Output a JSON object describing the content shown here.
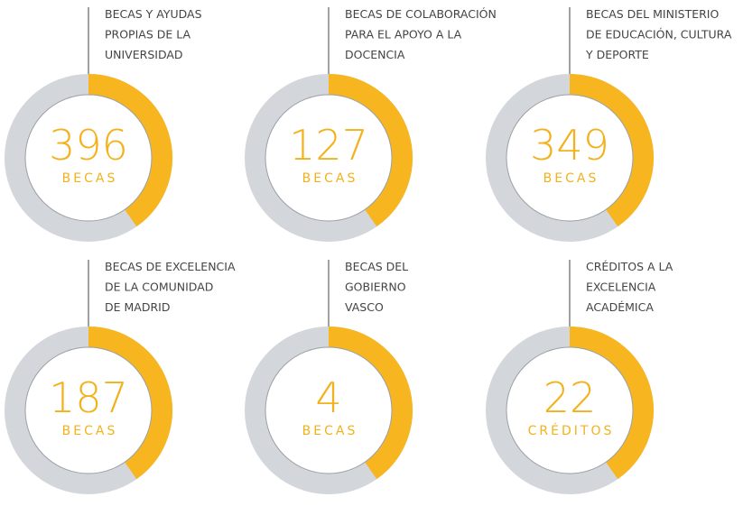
{
  "items": [
    {
      "label": [
        "BECAS Y AYUDAS",
        "PROPIAS DE LA",
        "UNIVERSIDAD"
      ],
      "number": "396",
      "unit": "BECAS"
    },
    {
      "label": [
        "BECAS DE COLABORACIÓN",
        "PARA EL APOYO A LA",
        "DOCENCIA"
      ],
      "number": "127",
      "unit": "BECAS"
    },
    {
      "label": [
        "BECAS DEL MINISTERIO",
        "DE EDUCACIÓN, CULTURA",
        "Y DEPORTE"
      ],
      "number": "349",
      "unit": "BECAS"
    },
    {
      "label": [
        "BECAS DE EXCELENCIA",
        "DE LA COMUNIDAD",
        "DE MADRID"
      ],
      "number": "187",
      "unit": "BECAS"
    },
    {
      "label": [
        "BECAS DEL",
        "GOBIERNO",
        "VASCO"
      ],
      "number": "4",
      "unit": "BECAS"
    },
    {
      "label": [
        "CRÉDITOS A LA",
        "EXCELENCIA",
        "ACADÉMICA"
      ],
      "number": "22",
      "unit": "CRÉDITOS"
    }
  ]
}
